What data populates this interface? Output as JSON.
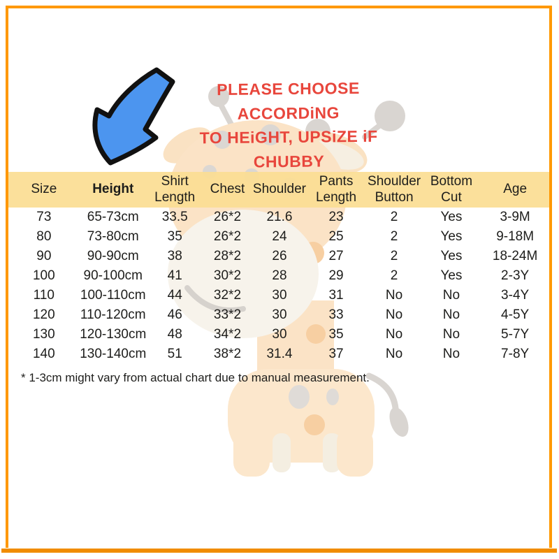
{
  "chart_data": {
    "type": "table",
    "columns": [
      "Size",
      "Height",
      "Shirt\nLength",
      "Chest",
      "Shoulder",
      "Pants\nLength",
      "Shoulder\nButton",
      "Bottom\nCut",
      "Age"
    ],
    "header_bold_column": 1,
    "rows": [
      [
        "73",
        "65-73cm",
        "33.5",
        "26*2",
        "21.6",
        "23",
        "2",
        "Yes",
        "3-9M"
      ],
      [
        "80",
        "73-80cm",
        "35",
        "26*2",
        "24",
        "25",
        "2",
        "Yes",
        "9-18M"
      ],
      [
        "90",
        "90-90cm",
        "38",
        "28*2",
        "26",
        "27",
        "2",
        "Yes",
        "18-24M"
      ],
      [
        "100",
        "90-100cm",
        "41",
        "30*2",
        "28",
        "29",
        "2",
        "Yes",
        "2-3Y"
      ],
      [
        "110",
        "100-110cm",
        "44",
        "32*2",
        "30",
        "31",
        "No",
        "No",
        "3-4Y"
      ],
      [
        "120",
        "110-120cm",
        "46",
        "33*2",
        "30",
        "33",
        "No",
        "No",
        "4-5Y"
      ],
      [
        "130",
        "120-130cm",
        "48",
        "34*2",
        "30",
        "35",
        "No",
        "No",
        "5-7Y"
      ],
      [
        "140",
        "130-140cm",
        "51",
        "38*2",
        "31.4",
        "37",
        "No",
        "No",
        "7-8Y"
      ]
    ],
    "annotation": "PLEASE CHOOSE ACCORDiNG TO HEiGHT, UPSiZE iF CHUBBY",
    "footnote": "* 1-3cm might vary from actual chart due to manual measurement.",
    "header_bg": "#FBDE93"
  },
  "annotation": {
    "line1": "PLEASE CHOOSE ACCORDiNG",
    "line2": "TO HEiGHT, UPSiZE iF CHUBBY",
    "color": "#E8463C"
  },
  "footnote": "* 1-3cm might vary from actual chart due to manual measurement.",
  "arrow": {
    "label": "down-left-arrow",
    "fill": "#4C95EF",
    "outline": "#111111"
  },
  "frame": {
    "border_color": "#FF9800",
    "bottom_bar_color": "#F18C00"
  },
  "mascot": {
    "label": "giraffe-illustration",
    "body_color": "#FBE3C6",
    "spot_color": "#DBD7D3"
  }
}
